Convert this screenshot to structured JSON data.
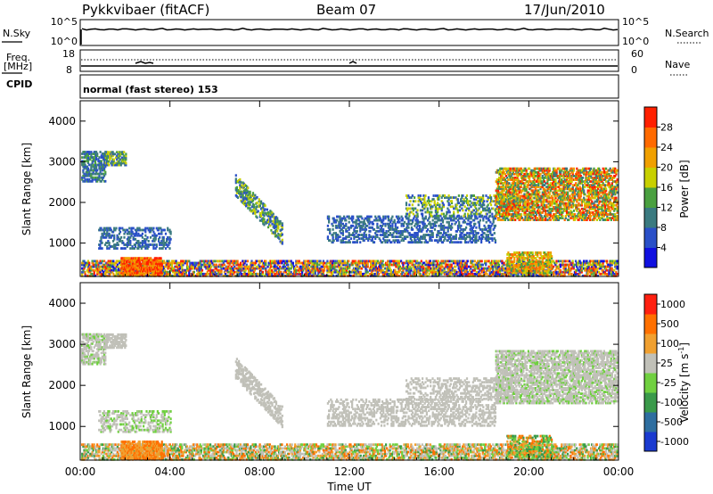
{
  "header": {
    "station": "Pykkvibaer (fitACF)",
    "beam": "Beam 07",
    "date": "17/Jun/2010"
  },
  "sky_panel": {
    "left_label": "N.Sky",
    "left_ticks": [
      "10^5",
      "10^0"
    ],
    "right_label": "N.Search",
    "right_ticks": [
      "10^5",
      "10^0"
    ]
  },
  "freq_panel": {
    "left_label_1": "Freq.",
    "left_label_2": "[MHz]",
    "left_ticks": [
      "18",
      "8"
    ],
    "right_label": "Nave",
    "right_ticks": [
      "60",
      "0"
    ]
  },
  "cpid": {
    "label": "CPID",
    "text": "normal (fast stereo) 153"
  },
  "chart_data": [
    {
      "type": "heatmap",
      "name": "power",
      "ylabel": "Slant Range [km]",
      "ylim": [
        180,
        4500
      ],
      "yticks": [
        "1000",
        "2000",
        "3000",
        "4000"
      ],
      "xlim_hours": [
        0,
        24
      ],
      "xticks": [
        "00:00",
        "04:00",
        "08:00",
        "12:00",
        "16:00",
        "20:00",
        "00:00"
      ],
      "colorbar": {
        "label": "Power [dB]",
        "ticks": [
          "4",
          "8",
          "12",
          "16",
          "20",
          "24",
          "28"
        ],
        "colors": [
          "#1010e0",
          "#2a50c8",
          "#3a7a80",
          "#4aa040",
          "#c8d000",
          "#f0a000",
          "#ff6a00",
          "#ff2000"
        ]
      }
    },
    {
      "type": "heatmap",
      "name": "velocity",
      "ylabel": "Slant Range [km]",
      "ylim": [
        180,
        4500
      ],
      "yticks": [
        "1000",
        "2000",
        "3000",
        "4000"
      ],
      "xlim_hours": [
        0,
        24
      ],
      "xticks": [
        "00:00",
        "04:00",
        "08:00",
        "12:00",
        "16:00",
        "20:00",
        "00:00"
      ],
      "xlabel": "Time UT",
      "colorbar": {
        "label": "Velocity [m s",
        "label_sup": "-1",
        "label_close": "]",
        "ticks": [
          "1000",
          "500",
          "100",
          "25",
          "-25",
          "-100",
          "-500",
          "-1000"
        ],
        "colors": [
          "#1a3ad0",
          "#2e6ea0",
          "#3a9a4a",
          "#70d040",
          "#c0c0b8",
          "#f0a030",
          "#ff7000",
          "#ff2010"
        ]
      }
    }
  ]
}
